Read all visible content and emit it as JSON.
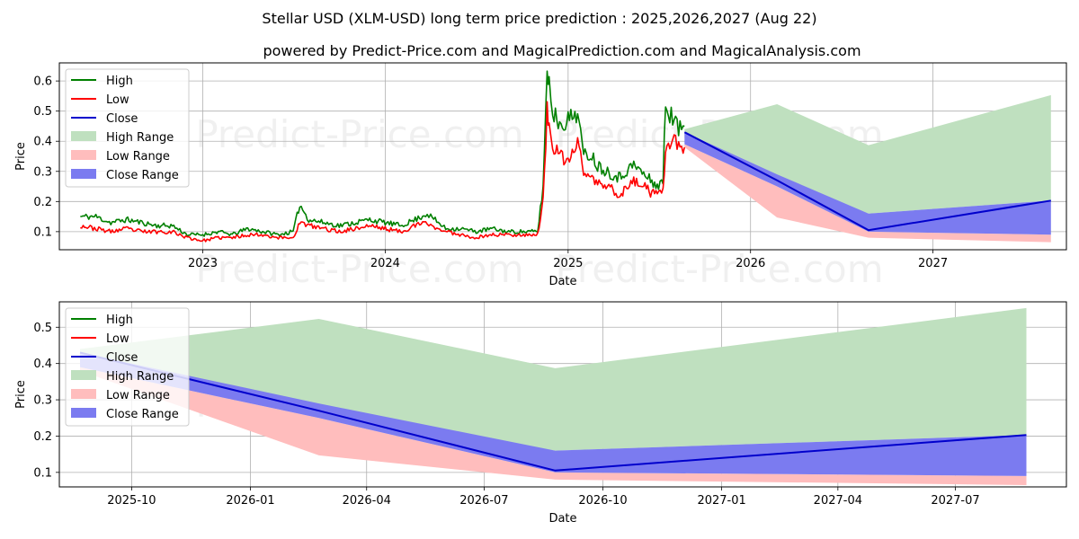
{
  "title": "Stellar USD (XLM-USD) long term price prediction : 2025,2026,2027 (Aug 22)",
  "subtitle": "powered by Predict-Price.com and MagicalPrediction.com and MagicalAnalysis.com",
  "watermark": "Predict-Price.com",
  "colors": {
    "high": "#008000",
    "low": "#ff0000",
    "close": "#0000cc",
    "high_range": "#bfe0bf",
    "low_range": "#ffbdbd",
    "close_range": "#7b7bf0",
    "grid": "#b0b0b0"
  },
  "chart_data": [
    {
      "type": "line",
      "xlabel": "Date",
      "ylabel": "Price",
      "xlim": [
        "2022-03-20",
        "2027-09-25"
      ],
      "ylim": [
        0.04,
        0.66
      ],
      "yticks": [
        0.1,
        0.2,
        0.3,
        0.4,
        0.5,
        0.6
      ],
      "ytick_labels": [
        "0.1",
        "0.2",
        "0.3",
        "0.4",
        "0.5",
        "0.6"
      ],
      "xticks": [
        "2023-01-01",
        "2024-01-01",
        "2025-01-01",
        "2026-01-01",
        "2027-01-01"
      ],
      "xtick_labels": [
        "2023",
        "2024",
        "2025",
        "2026",
        "2027"
      ],
      "grid": true,
      "legend_position": "top-left",
      "legend": [
        "High",
        "Low",
        "Close",
        "High Range",
        "Low Range",
        "Close Range"
      ],
      "series": [
        {
          "name": "High",
          "x": [
            "2022-05-01",
            "2022-06-01",
            "2022-07-01",
            "2022-08-01",
            "2022-09-01",
            "2022-10-01",
            "2022-11-01",
            "2022-12-01",
            "2023-01-01",
            "2023-02-01",
            "2023-03-01",
            "2023-04-01",
            "2023-05-01",
            "2023-06-01",
            "2023-07-01",
            "2023-07-14",
            "2023-08-01",
            "2023-09-01",
            "2023-10-01",
            "2023-11-01",
            "2023-12-01",
            "2024-01-01",
            "2024-02-01",
            "2024-03-01",
            "2024-03-25",
            "2024-04-01",
            "2024-05-01",
            "2024-06-01",
            "2024-07-01",
            "2024-08-01",
            "2024-09-01",
            "2024-10-01",
            "2024-11-01",
            "2024-11-12",
            "2024-11-20",
            "2024-11-24",
            "2024-12-01",
            "2024-12-15",
            "2025-01-01",
            "2025-01-20",
            "2025-02-01",
            "2025-02-15",
            "2025-03-01",
            "2025-04-01",
            "2025-04-15",
            "2025-05-01",
            "2025-05-15",
            "2025-06-01",
            "2025-06-15",
            "2025-07-01",
            "2025-07-10",
            "2025-07-15",
            "2025-08-01",
            "2025-08-10",
            "2025-08-22"
          ],
          "values": [
            0.15,
            0.15,
            0.13,
            0.14,
            0.13,
            0.12,
            0.12,
            0.09,
            0.09,
            0.1,
            0.09,
            0.11,
            0.1,
            0.09,
            0.1,
            0.19,
            0.14,
            0.13,
            0.12,
            0.13,
            0.14,
            0.13,
            0.12,
            0.14,
            0.16,
            0.15,
            0.11,
            0.11,
            0.1,
            0.11,
            0.1,
            0.1,
            0.1,
            0.25,
            0.63,
            0.6,
            0.5,
            0.46,
            0.47,
            0.5,
            0.35,
            0.36,
            0.32,
            0.29,
            0.28,
            0.31,
            0.32,
            0.29,
            0.27,
            0.25,
            0.27,
            0.52,
            0.47,
            0.44,
            0.45
          ]
        },
        {
          "name": "Low",
          "x": [
            "2022-05-01",
            "2022-06-01",
            "2022-07-01",
            "2022-08-01",
            "2022-09-01",
            "2022-10-01",
            "2022-11-01",
            "2022-12-01",
            "2023-01-01",
            "2023-02-01",
            "2023-03-01",
            "2023-04-01",
            "2023-05-01",
            "2023-06-01",
            "2023-07-01",
            "2023-07-14",
            "2023-08-01",
            "2023-09-01",
            "2023-10-01",
            "2023-11-01",
            "2023-12-01",
            "2024-01-01",
            "2024-02-01",
            "2024-03-01",
            "2024-03-25",
            "2024-04-01",
            "2024-05-01",
            "2024-06-01",
            "2024-07-01",
            "2024-08-01",
            "2024-09-01",
            "2024-10-01",
            "2024-11-01",
            "2024-11-12",
            "2024-11-20",
            "2024-11-24",
            "2024-12-01",
            "2024-12-15",
            "2025-01-01",
            "2025-01-20",
            "2025-02-01",
            "2025-02-15",
            "2025-03-01",
            "2025-04-01",
            "2025-04-15",
            "2025-05-01",
            "2025-05-15",
            "2025-06-01",
            "2025-06-15",
            "2025-07-01",
            "2025-07-10",
            "2025-07-15",
            "2025-08-01",
            "2025-08-10",
            "2025-08-22"
          ],
          "values": [
            0.12,
            0.11,
            0.1,
            0.11,
            0.1,
            0.1,
            0.1,
            0.08,
            0.07,
            0.08,
            0.08,
            0.09,
            0.09,
            0.08,
            0.08,
            0.13,
            0.12,
            0.11,
            0.1,
            0.11,
            0.12,
            0.11,
            0.1,
            0.12,
            0.13,
            0.12,
            0.1,
            0.09,
            0.08,
            0.09,
            0.09,
            0.09,
            0.09,
            0.2,
            0.5,
            0.46,
            0.38,
            0.35,
            0.33,
            0.4,
            0.3,
            0.28,
            0.26,
            0.24,
            0.22,
            0.25,
            0.27,
            0.25,
            0.23,
            0.22,
            0.23,
            0.38,
            0.4,
            0.38,
            0.38
          ]
        },
        {
          "name": "Close",
          "x": [
            "2025-08-22",
            "2026-02-23",
            "2026-08-25",
            "2027-08-25"
          ],
          "values": [
            0.43,
            0.27,
            0.105,
            0.203
          ]
        },
        {
          "name": "High Range",
          "x": [
            "2025-08-22",
            "2026-02-23",
            "2026-08-25",
            "2027-08-25"
          ],
          "upper": [
            0.44,
            0.523,
            0.387,
            0.553
          ],
          "lower": [
            0.41,
            0.27,
            0.16,
            0.203
          ]
        },
        {
          "name": "Low Range",
          "x": [
            "2025-08-22",
            "2026-02-23",
            "2026-08-25",
            "2027-08-25"
          ],
          "upper": [
            0.39,
            0.25,
            0.1,
            0.09
          ],
          "lower": [
            0.38,
            0.147,
            0.08,
            0.065
          ]
        },
        {
          "name": "Close Range",
          "x": [
            "2025-08-22",
            "2026-02-23",
            "2026-08-25",
            "2027-08-25"
          ],
          "upper": [
            0.43,
            0.29,
            0.16,
            0.203
          ],
          "lower": [
            0.39,
            0.25,
            0.1,
            0.09
          ]
        }
      ]
    },
    {
      "type": "line",
      "xlabel": "Date",
      "ylabel": "Price",
      "xlim": [
        "2025-08-06",
        "2027-09-25"
      ],
      "ylim": [
        0.06,
        0.57
      ],
      "yticks": [
        0.1,
        0.2,
        0.3,
        0.4,
        0.5
      ],
      "ytick_labels": [
        "0.1",
        "0.2",
        "0.3",
        "0.4",
        "0.5"
      ],
      "xticks": [
        "2025-10-01",
        "2026-01-01",
        "2026-04-01",
        "2026-07-01",
        "2026-10-01",
        "2027-01-01",
        "2027-04-01",
        "2027-07-01"
      ],
      "xtick_labels": [
        "2025-10",
        "2026-01",
        "2026-04",
        "2026-07",
        "2026-10",
        "2027-01",
        "2027-04",
        "2027-07"
      ],
      "grid": true,
      "legend_position": "top-left",
      "legend": [
        "High",
        "Low",
        "Close",
        "High Range",
        "Low Range",
        "Close Range"
      ],
      "series": [
        {
          "name": "Close",
          "x": [
            "2025-08-22",
            "2026-02-23",
            "2026-08-25",
            "2027-08-25"
          ],
          "values": [
            0.43,
            0.27,
            0.105,
            0.203
          ]
        },
        {
          "name": "High Range",
          "x": [
            "2025-08-22",
            "2026-02-23",
            "2026-08-25",
            "2027-08-25"
          ],
          "upper": [
            0.44,
            0.523,
            0.387,
            0.553
          ],
          "lower": [
            0.41,
            0.27,
            0.16,
            0.203
          ]
        },
        {
          "name": "Low Range",
          "x": [
            "2025-08-22",
            "2026-02-23",
            "2026-08-25",
            "2027-08-25"
          ],
          "upper": [
            0.39,
            0.25,
            0.1,
            0.09
          ],
          "lower": [
            0.38,
            0.147,
            0.08,
            0.065
          ]
        },
        {
          "name": "Close Range",
          "x": [
            "2025-08-22",
            "2026-02-23",
            "2026-08-25",
            "2027-08-25"
          ],
          "upper": [
            0.43,
            0.29,
            0.16,
            0.203
          ],
          "lower": [
            0.39,
            0.25,
            0.1,
            0.09
          ]
        }
      ]
    }
  ]
}
